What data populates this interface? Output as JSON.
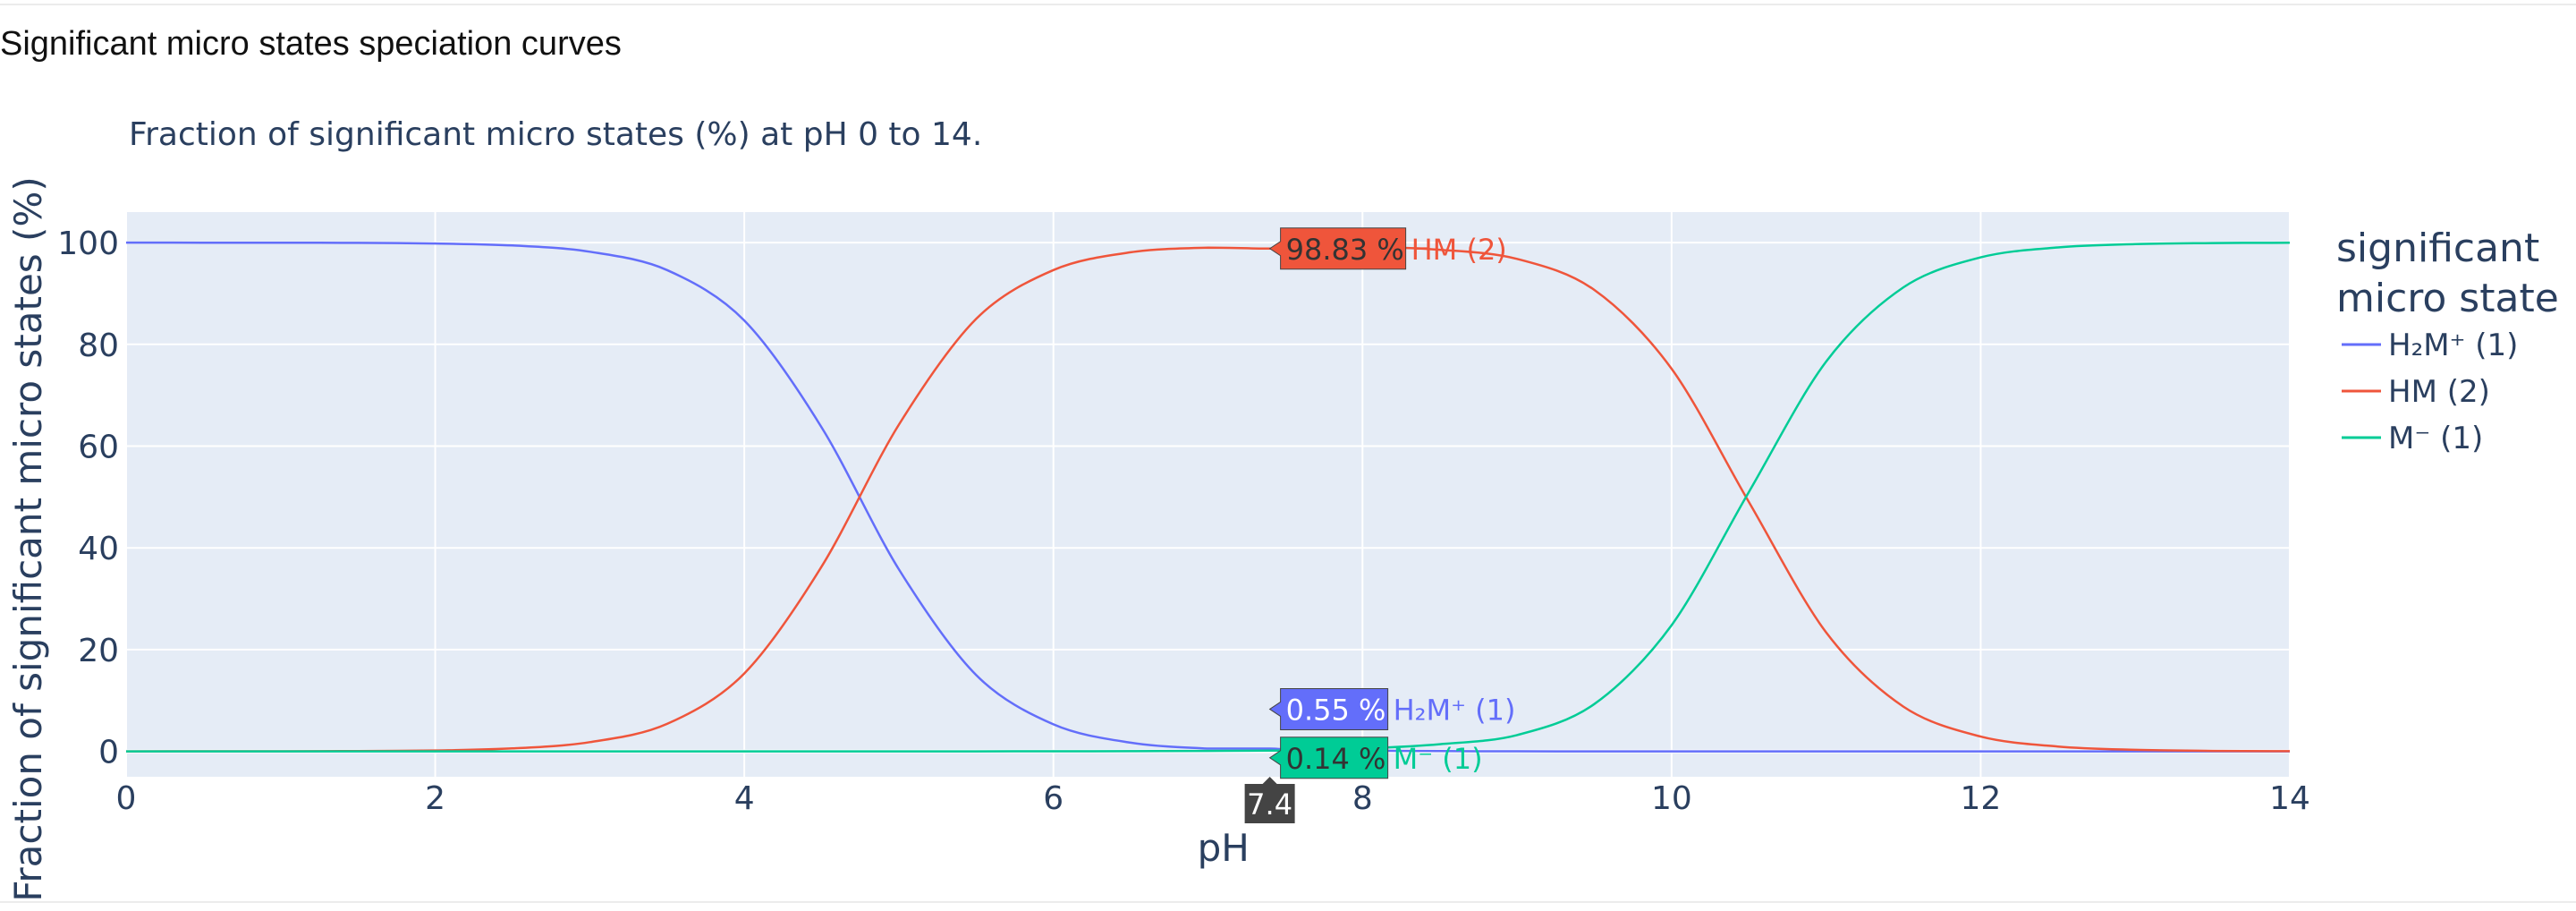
{
  "page": {
    "section_title": "Significant micro states speciation curves"
  },
  "chart_data": {
    "type": "line",
    "title": "Fraction of significant micro states (%) at pH 0 to 14.",
    "xlabel": "pH",
    "ylabel": "Fraction of significant micro states (%)",
    "xlim": [
      0,
      14
    ],
    "ylim": [
      -5,
      106
    ],
    "x_ticks": [
      0,
      2,
      4,
      6,
      8,
      10,
      12,
      14
    ],
    "y_ticks": [
      0,
      20,
      40,
      60,
      80,
      100
    ],
    "grid": true,
    "legend": {
      "title": "significant micro state",
      "title_lines": [
        "significant",
        "micro state"
      ],
      "position": "right",
      "entries": [
        "H₂M⁺ (1)",
        "HM (2)",
        "M⁻ (1)"
      ]
    },
    "x": [
      0,
      0.5,
      1,
      1.5,
      2,
      2.5,
      3,
      3.5,
      4,
      4.5,
      5,
      5.5,
      6,
      6.5,
      7,
      7.4,
      7.5,
      8,
      8.5,
      9,
      9.5,
      10,
      10.5,
      11,
      11.5,
      12,
      12.5,
      13,
      13.5,
      14
    ],
    "series": [
      {
        "name": "H₂M⁺ (1)",
        "color": "#636efa",
        "values": [
          100,
          99.99,
          99.98,
          99.94,
          99.82,
          99.43,
          98.2,
          94.6,
          84.7,
          63.7,
          35.8,
          15.0,
          5.3,
          1.7,
          0.55,
          0.55,
          0.42,
          0.13,
          0.04,
          0.01,
          0,
          0,
          0,
          0,
          0,
          0,
          0,
          0,
          0,
          0
        ]
      },
      {
        "name": "HM (2)",
        "color": "#ef553b",
        "values": [
          0,
          0.01,
          0.02,
          0.06,
          0.18,
          0.57,
          1.8,
          5.4,
          15.3,
          36.3,
          64.2,
          85.0,
          94.6,
          98.1,
          99.0,
          98.83,
          99.2,
          99.2,
          98.6,
          96.8,
          90.7,
          75.2,
          49.0,
          23.4,
          8.8,
          2.9,
          0.94,
          0.3,
          0.09,
          0.03
        ]
      },
      {
        "name": "M⁻ (1)",
        "color": "#00cc96",
        "values": [
          0,
          0,
          0,
          0,
          0,
          0,
          0,
          0,
          0,
          0,
          0,
          0,
          0.01,
          0.03,
          0.08,
          0.14,
          0.18,
          0.55,
          1.4,
          3.2,
          9.3,
          24.8,
          51.0,
          76.6,
          91.2,
          97.1,
          99.06,
          99.7,
          99.91,
          99.97
        ]
      }
    ],
    "hover": {
      "x_label": "7.4",
      "labels": [
        {
          "series": 1,
          "value_text": "98.83 %",
          "name": "HM (2)",
          "bg": "#ef553b",
          "text_color": "#333333",
          "name_color": "#ef553b"
        },
        {
          "series": 0,
          "value_text": "0.55 %",
          "name": "H₂M⁺ (1)",
          "bg": "#636efa",
          "text_color": "#ffffff",
          "name_color": "#636efa"
        },
        {
          "series": 2,
          "value_text": "0.14 %",
          "name": "M⁻ (1)",
          "bg": "#00cc96",
          "text_color": "#333333",
          "name_color": "#00cc96"
        }
      ]
    },
    "colors": {
      "plot_bg": "#e5ecf6",
      "grid": "#ffffff",
      "text": "#2a3f5f",
      "axis_text": "#2a3f5f",
      "spike_bg": "#444444"
    }
  }
}
